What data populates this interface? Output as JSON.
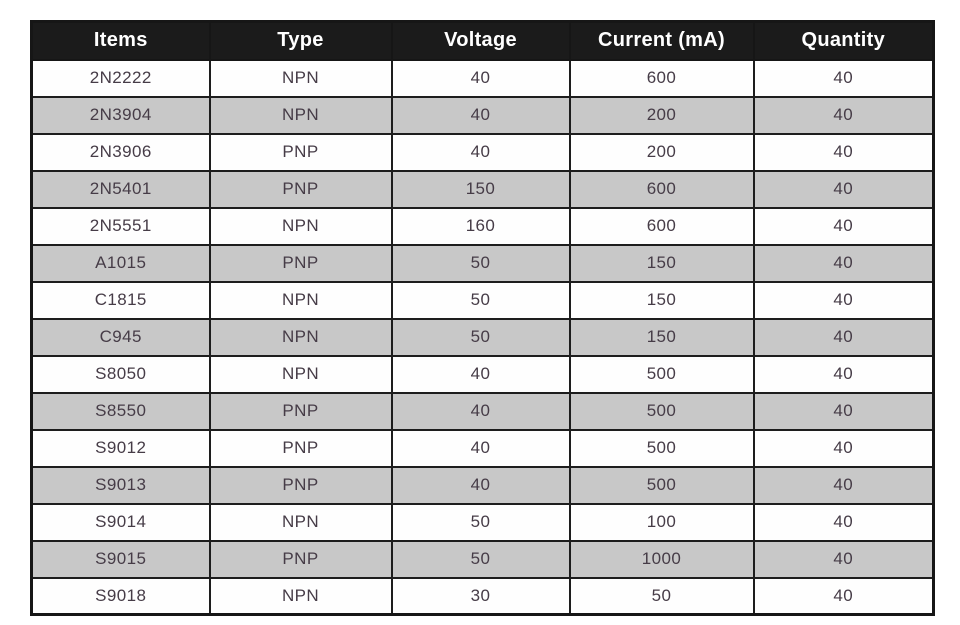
{
  "chart_data": {
    "type": "table",
    "title": "",
    "columns": [
      "Items",
      "Type",
      "Voltage",
      "Current (mA)",
      "Quantity"
    ],
    "rows": [
      [
        "2N2222",
        "NPN",
        "40",
        "600",
        "40"
      ],
      [
        "2N3904",
        "NPN",
        "40",
        "200",
        "40"
      ],
      [
        "2N3906",
        "PNP",
        "40",
        "200",
        "40"
      ],
      [
        "2N5401",
        "PNP",
        "150",
        "600",
        "40"
      ],
      [
        "2N5551",
        "NPN",
        "160",
        "600",
        "40"
      ],
      [
        "A1015",
        "PNP",
        "50",
        "150",
        "40"
      ],
      [
        "C1815",
        "NPN",
        "50",
        "150",
        "40"
      ],
      [
        "C945",
        "NPN",
        "50",
        "150",
        "40"
      ],
      [
        "S8050",
        "NPN",
        "40",
        "500",
        "40"
      ],
      [
        "S8550",
        "PNP",
        "40",
        "500",
        "40"
      ],
      [
        "S9012",
        "PNP",
        "40",
        "500",
        "40"
      ],
      [
        "S9013",
        "PNP",
        "40",
        "500",
        "40"
      ],
      [
        "S9014",
        "NPN",
        "50",
        "100",
        "40"
      ],
      [
        "S9015",
        "PNP",
        "50",
        "1000",
        "40"
      ],
      [
        "S9018",
        "NPN",
        "30",
        "50",
        "40"
      ]
    ],
    "shaded_row_indices": [
      1,
      3,
      5,
      7,
      9,
      11,
      13
    ],
    "layout": "striped rows, black header, all cells center-aligned"
  },
  "colors": {
    "header_bg": "#1b1b1b",
    "header_text": "#ffffff",
    "row_bg": "#fefefe",
    "row_alt_bg": "#c8c8c8",
    "border": "#1d1d1d",
    "cell_text": "#463c47",
    "page_bg": "#ffffff"
  }
}
